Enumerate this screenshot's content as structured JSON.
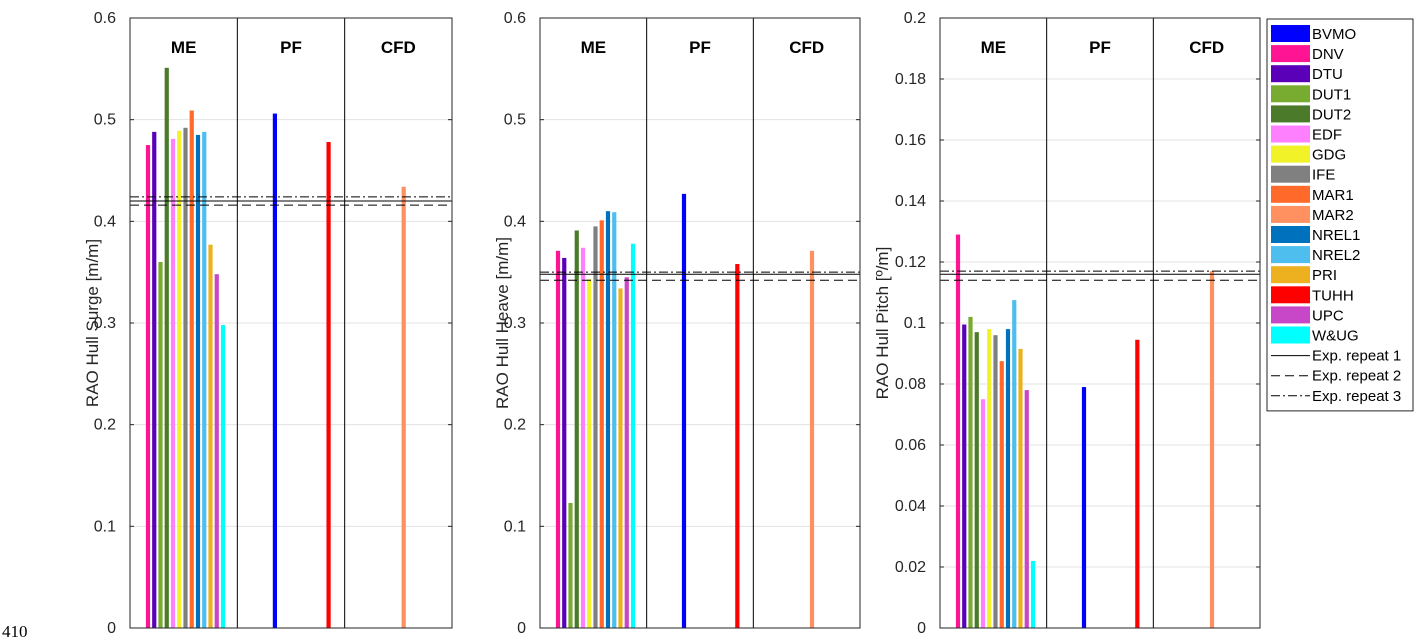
{
  "page_number": "410",
  "chart_data": [
    {
      "type": "bar",
      "title": "",
      "xlabel": "",
      "ylabel": "RAO Hull Surge [m/m]",
      "ylim": [
        0,
        0.6
      ],
      "yticks": [
        "0",
        "0.1",
        "0.2",
        "0.3",
        "0.4",
        "0.5",
        "0.6"
      ],
      "grid": true,
      "sections": [
        "ME",
        "PF",
        "CFD"
      ],
      "series": [
        {
          "name": "BVMO",
          "section": "PF",
          "value": 0.506
        },
        {
          "name": "DNV",
          "section": "ME",
          "value": 0.475
        },
        {
          "name": "DTU",
          "section": "ME",
          "value": 0.488
        },
        {
          "name": "DUT1",
          "section": "ME",
          "value": 0.36
        },
        {
          "name": "DUT2",
          "section": "ME",
          "value": 0.551
        },
        {
          "name": "EDF",
          "section": "ME",
          "value": 0.481
        },
        {
          "name": "GDG",
          "section": "ME",
          "value": 0.489
        },
        {
          "name": "IFE",
          "section": "ME",
          "value": 0.492
        },
        {
          "name": "MAR1",
          "section": "ME",
          "value": 0.509
        },
        {
          "name": "NREL1",
          "section": "ME",
          "value": 0.485
        },
        {
          "name": "NREL2",
          "section": "ME",
          "value": 0.488
        },
        {
          "name": "PRI",
          "section": "ME",
          "value": 0.377
        },
        {
          "name": "UPC",
          "section": "ME",
          "value": 0.348
        },
        {
          "name": "W&UG",
          "section": "ME",
          "value": 0.298
        },
        {
          "name": "TUHH",
          "section": "PF",
          "value": 0.478
        },
        {
          "name": "MAR2",
          "section": "CFD",
          "value": 0.434
        }
      ],
      "exp_repeats": [
        0.42,
        0.416,
        0.424
      ]
    },
    {
      "type": "bar",
      "title": "",
      "xlabel": "",
      "ylabel": "RAO Hull Heave [m/m]",
      "ylim": [
        0,
        0.6
      ],
      "yticks": [
        "0",
        "0.1",
        "0.2",
        "0.3",
        "0.4",
        "0.5",
        "0.6"
      ],
      "grid": true,
      "sections": [
        "ME",
        "PF",
        "CFD"
      ],
      "series": [
        {
          "name": "BVMO",
          "section": "PF",
          "value": 0.427
        },
        {
          "name": "DNV",
          "section": "ME",
          "value": 0.371
        },
        {
          "name": "DTU",
          "section": "ME",
          "value": 0.364
        },
        {
          "name": "DUT1",
          "section": "ME",
          "value": 0.123
        },
        {
          "name": "DUT2",
          "section": "ME",
          "value": 0.391
        },
        {
          "name": "EDF",
          "section": "ME",
          "value": 0.374
        },
        {
          "name": "GDG",
          "section": "ME",
          "value": 0.343
        },
        {
          "name": "IFE",
          "section": "ME",
          "value": 0.395
        },
        {
          "name": "MAR1",
          "section": "ME",
          "value": 0.401
        },
        {
          "name": "NREL1",
          "section": "ME",
          "value": 0.41
        },
        {
          "name": "NREL2",
          "section": "ME",
          "value": 0.409
        },
        {
          "name": "PRI",
          "section": "ME",
          "value": 0.334
        },
        {
          "name": "UPC",
          "section": "ME",
          "value": 0.345
        },
        {
          "name": "W&UG",
          "section": "ME",
          "value": 0.378
        },
        {
          "name": "TUHH",
          "section": "PF",
          "value": 0.358
        },
        {
          "name": "MAR2",
          "section": "CFD",
          "value": 0.371
        }
      ],
      "exp_repeats": [
        0.348,
        0.342,
        0.35
      ]
    },
    {
      "type": "bar",
      "title": "",
      "xlabel": "",
      "ylabel": "RAO Hull Pitch [º/m]",
      "ylim": [
        0,
        0.2
      ],
      "yticks": [
        "0",
        "0.02",
        "0.04",
        "0.06",
        "0.08",
        "0.1",
        "0.12",
        "0.14",
        "0.16",
        "0.18",
        "0.2"
      ],
      "grid": true,
      "sections": [
        "ME",
        "PF",
        "CFD"
      ],
      "series": [
        {
          "name": "BVMO",
          "section": "PF",
          "value": 0.079
        },
        {
          "name": "DNV",
          "section": "ME",
          "value": 0.129
        },
        {
          "name": "DTU",
          "section": "ME",
          "value": 0.0995
        },
        {
          "name": "DUT1",
          "section": "ME",
          "value": 0.102
        },
        {
          "name": "DUT2",
          "section": "ME",
          "value": 0.097
        },
        {
          "name": "EDF",
          "section": "ME",
          "value": 0.075
        },
        {
          "name": "GDG",
          "section": "ME",
          "value": 0.098
        },
        {
          "name": "IFE",
          "section": "ME",
          "value": 0.096
        },
        {
          "name": "MAR1",
          "section": "ME",
          "value": 0.0875
        },
        {
          "name": "NREL1",
          "section": "ME",
          "value": 0.098
        },
        {
          "name": "NREL2",
          "section": "ME",
          "value": 0.1075
        },
        {
          "name": "PRI",
          "section": "ME",
          "value": 0.0915
        },
        {
          "name": "UPC",
          "section": "ME",
          "value": 0.078
        },
        {
          "name": "W&UG",
          "section": "ME",
          "value": 0.022
        },
        {
          "name": "TUHH",
          "section": "PF",
          "value": 0.0945
        },
        {
          "name": "MAR2",
          "section": "CFD",
          "value": 0.117
        }
      ],
      "exp_repeats": [
        0.116,
        0.114,
        0.117
      ]
    }
  ],
  "legend": {
    "position": "right",
    "bars": [
      {
        "name": "BVMO",
        "color": "#0000ff"
      },
      {
        "name": "DNV",
        "color": "#ff1493"
      },
      {
        "name": "DTU",
        "color": "#5a00b8"
      },
      {
        "name": "DUT1",
        "color": "#77ac30"
      },
      {
        "name": "DUT2",
        "color": "#4a7a2a"
      },
      {
        "name": "EDF",
        "color": "#ff80ff"
      },
      {
        "name": "GDG",
        "color": "#f2f228"
      },
      {
        "name": "IFE",
        "color": "#808080"
      },
      {
        "name": "MAR1",
        "color": "#ff6a2b"
      },
      {
        "name": "MAR2",
        "color": "#ff9160"
      },
      {
        "name": "NREL1",
        "color": "#0072bd"
      },
      {
        "name": "NREL2",
        "color": "#4dbeee"
      },
      {
        "name": "PRI",
        "color": "#edb120"
      },
      {
        "name": "TUHH",
        "color": "#ff0000"
      },
      {
        "name": "UPC",
        "color": "#c846c8"
      },
      {
        "name": "W&UG",
        "color": "#00ffff"
      }
    ],
    "lines": [
      {
        "name": "Exp. repeat 1",
        "style": "solid"
      },
      {
        "name": "Exp. repeat 2",
        "style": "dashed"
      },
      {
        "name": "Exp. repeat 3",
        "style": "dashdot"
      }
    ]
  }
}
